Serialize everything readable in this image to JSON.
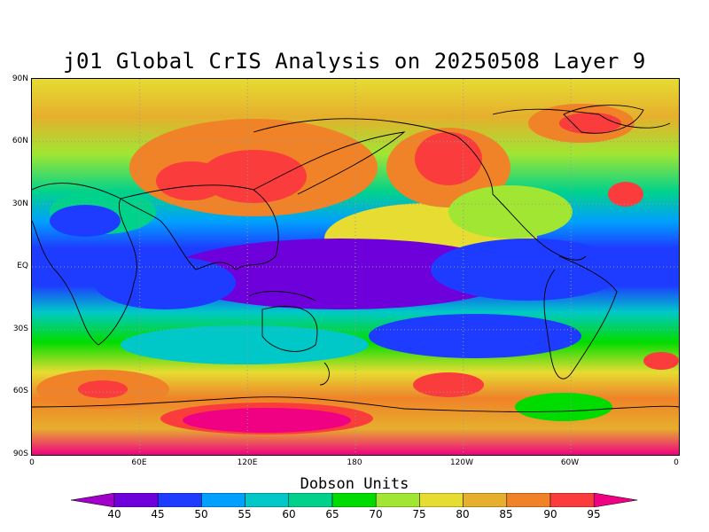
{
  "title": "j01 Global CrIS Analysis on 20250508 Layer 9",
  "lat_labels": [
    "90N",
    "60N",
    "30N",
    "EQ",
    "30S",
    "60S",
    "90S"
  ],
  "lon_labels": [
    "0",
    "60E",
    "120E",
    "180",
    "120W",
    "60W",
    "0"
  ],
  "colorbar": {
    "title": "Dobson Units",
    "labels": [
      "40",
      "45",
      "50",
      "55",
      "60",
      "65",
      "70",
      "75",
      "80",
      "85",
      "90",
      "95"
    ],
    "colors": [
      "#a000c8",
      "#6e00dc",
      "#1e3cff",
      "#00a0ff",
      "#00c8c8",
      "#00d28c",
      "#00dc00",
      "#a0e632",
      "#e6dc32",
      "#e6af2d",
      "#f08228",
      "#fa3c3c",
      "#f00082"
    ]
  },
  "map": {
    "projection": "equirectangular",
    "graticule": "dotted every 30 degrees",
    "features": [
      {
        "name": "tropical-minimum",
        "level": "40-45"
      },
      {
        "name": "northern-pacific-maximum",
        "level": "90-95"
      },
      {
        "name": "east-asia-maximum",
        "level": "90-95"
      },
      {
        "name": "southern-indian-ocean-maximum",
        "level": "95"
      },
      {
        "name": "greenland-maximum",
        "level": "90-95"
      }
    ]
  }
}
